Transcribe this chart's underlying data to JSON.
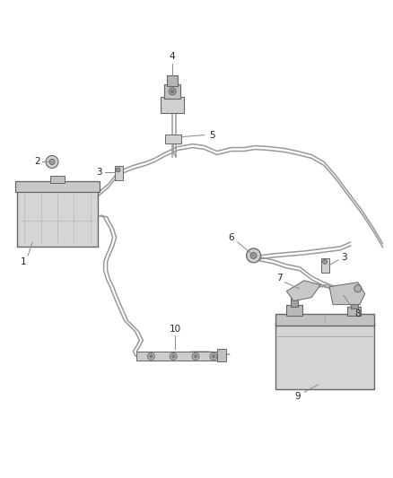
{
  "background_color": "#ffffff",
  "line_color": "#999999",
  "dark_color": "#555555",
  "fig_width": 4.38,
  "fig_height": 5.33,
  "dpi": 100,
  "cable_lw": 1.1,
  "component_color": "#777777",
  "fill_light": "#e0e0e0",
  "fill_dark": "#b0b0b0",
  "label_fs": 7.5
}
